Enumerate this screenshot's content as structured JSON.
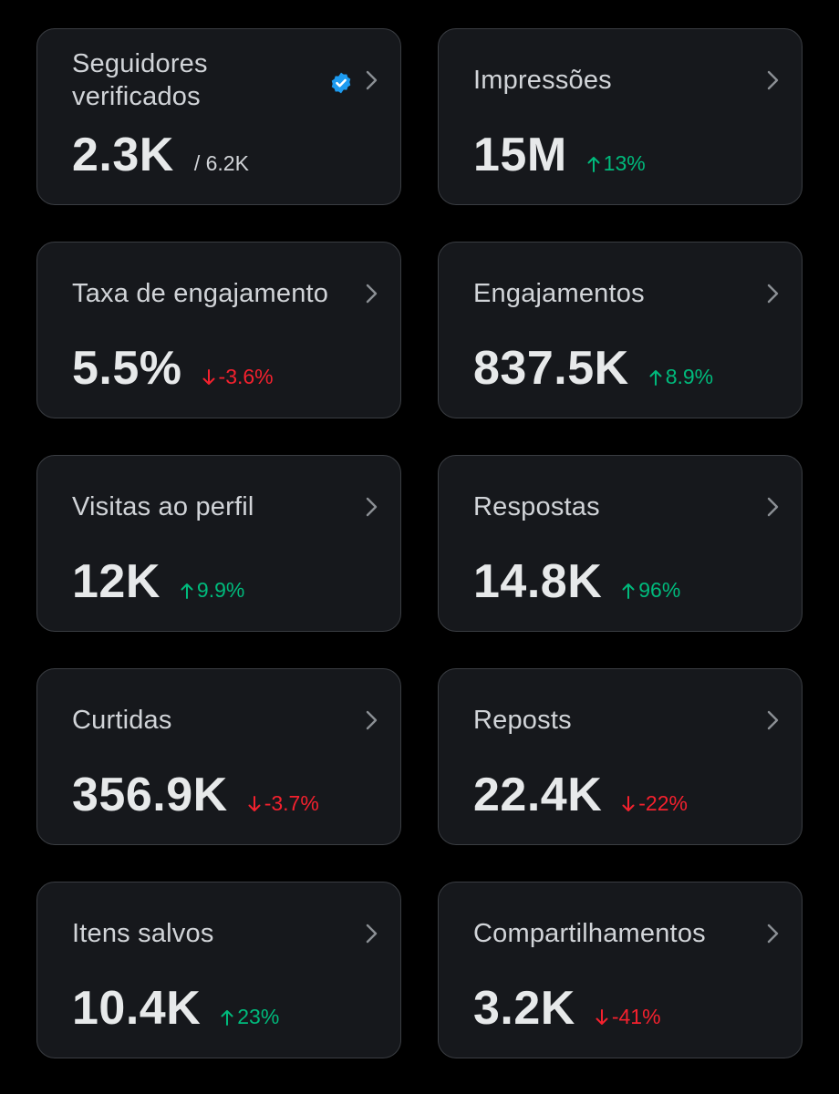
{
  "colors": {
    "background": "#000000",
    "card": "#16181c",
    "border": "#3a3d42",
    "text": "#e7e9ea",
    "muted": "#d1d4d8",
    "up": "#00ba7c",
    "down": "#f4212e",
    "verified": "#1d9bf0"
  },
  "cards": [
    {
      "title": "Seguidores verificados",
      "value": "2.3K",
      "sub": "/ 6.2K",
      "icon": "verified-badge-icon"
    },
    {
      "title": "Impressões",
      "value": "15M",
      "delta": "13%",
      "direction": "up"
    },
    {
      "title": "Taxa de engajamento",
      "value": "5.5%",
      "delta": "-3.6%",
      "direction": "down"
    },
    {
      "title": "Engajamentos",
      "value": "837.5K",
      "delta": "8.9%",
      "direction": "up"
    },
    {
      "title": "Visitas ao perfil",
      "value": "12K",
      "delta": "9.9%",
      "direction": "up"
    },
    {
      "title": "Respostas",
      "value": "14.8K",
      "delta": "96%",
      "direction": "up"
    },
    {
      "title": "Curtidas",
      "value": "356.9K",
      "delta": "-3.7%",
      "direction": "down"
    },
    {
      "title": "Reposts",
      "value": "22.4K",
      "delta": "-22%",
      "direction": "down"
    },
    {
      "title": "Itens salvos",
      "value": "10.4K",
      "delta": "23%",
      "direction": "up"
    },
    {
      "title": "Compartilhamentos",
      "value": "3.2K",
      "delta": "-41%",
      "direction": "down"
    }
  ]
}
